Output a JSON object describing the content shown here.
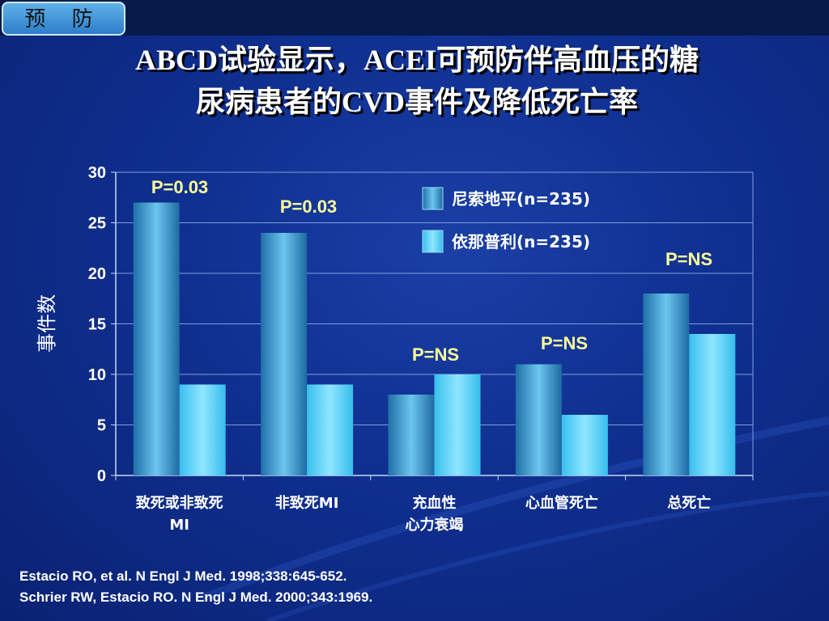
{
  "header": {
    "tag": "预 防",
    "title_line1": "ABCD试验显示，ACEI可预防伴高血压的糖",
    "title_line2": "尿病患者的CVD事件及降低死亡率"
  },
  "chart_data": {
    "type": "bar",
    "categories": [
      [
        "致死或非致死",
        "MI"
      ],
      [
        "非致死MI"
      ],
      [
        "充血性",
        "心力衰竭"
      ],
      [
        "心血管死亡"
      ],
      [
        "总死亡"
      ]
    ],
    "series": [
      {
        "name": "尼索地平(n=235)",
        "values": [
          27,
          24,
          8,
          11,
          18
        ],
        "color": "#3a9fd0"
      },
      {
        "name": "依那普利(n=235)",
        "values": [
          9,
          9,
          10,
          6,
          14
        ],
        "color": "#45cdf5"
      }
    ],
    "p_values": [
      "P=0.03",
      "P=0.03",
      "P=NS",
      "P=NS",
      "P=NS"
    ],
    "ylabel": "事件数",
    "ylim": [
      0,
      30
    ],
    "yticks": [
      0,
      5,
      10,
      15,
      20,
      25,
      30
    ],
    "grid": true,
    "legend_position": "top-right"
  },
  "citations": [
    "Estacio RO, et al. N Engl J Med. 1998;338:645-652.",
    "Schrier RW, Estacio RO. N Engl J Med. 2000;343:1969."
  ]
}
